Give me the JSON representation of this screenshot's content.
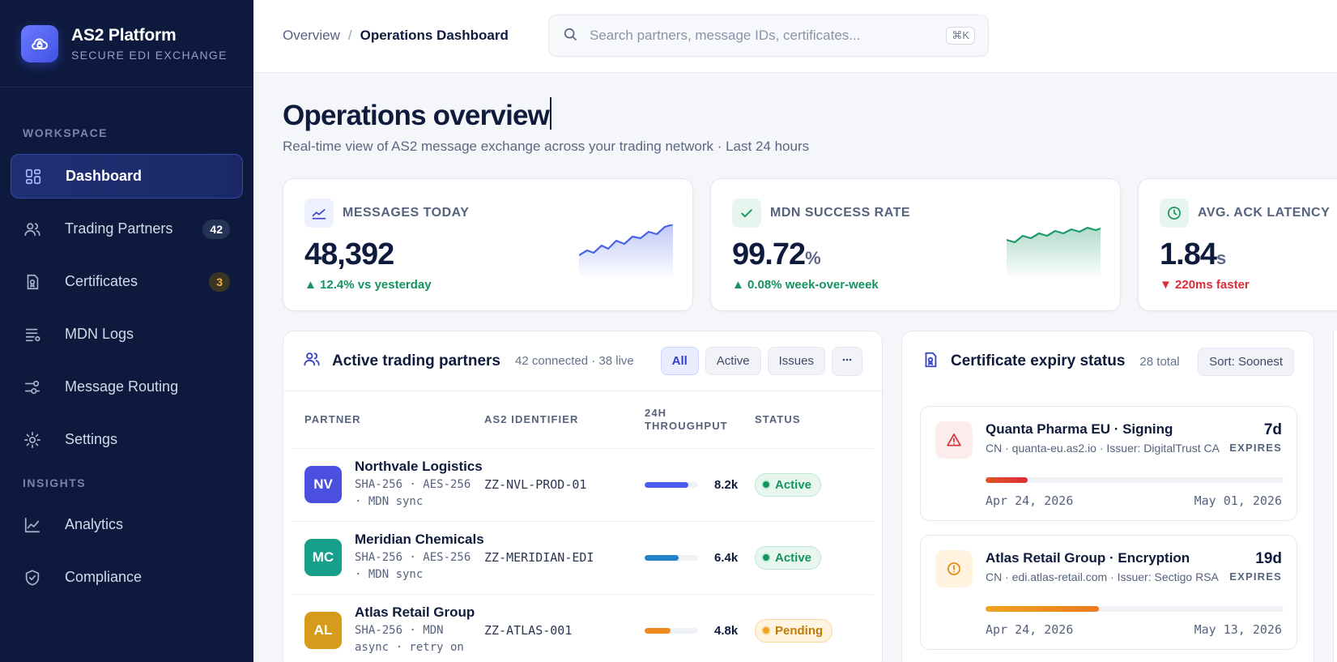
{
  "brand": {
    "name": "AS2 Platform",
    "subtitle": "SECURE EDI EXCHANGE"
  },
  "sidebar": {
    "workspace_label": "WORKSPACE",
    "insights_label": "INSIGHTS",
    "items": [
      {
        "label": "Dashboard",
        "icon": "dashboard-icon"
      },
      {
        "label": "Trading Partners",
        "icon": "users-icon",
        "badge": "42"
      },
      {
        "label": "Certificates",
        "icon": "certificate-icon",
        "badge": "3"
      },
      {
        "label": "MDN Logs",
        "icon": "list-icon"
      },
      {
        "label": "Message Routing",
        "icon": "routing-icon"
      },
      {
        "label": "Settings",
        "icon": "gear-icon"
      }
    ],
    "insights": [
      {
        "label": "Analytics",
        "icon": "chart-line-icon"
      },
      {
        "label": "Compliance",
        "icon": "shield-check-icon"
      }
    ]
  },
  "topbar": {
    "breadcrumb": [
      "Overview",
      "Operations Dashboard"
    ],
    "search_placeholder": "Search partners, message IDs, certificates...",
    "search_shortcut": "⌘K"
  },
  "page": {
    "title": "Operations overview",
    "subtitle": "Real-time view of AS2 message exchange across your trading network · Last 24 hours"
  },
  "kpis": [
    {
      "label": "MESSAGES TODAY",
      "value": "48,392",
      "unit": "",
      "delta": "12.4% vs yesterday",
      "direction": "up",
      "color": "#4a63e8"
    },
    {
      "label": "MDN SUCCESS RATE",
      "value": "99.72",
      "unit": "%",
      "delta": "0.08% week-over-week",
      "direction": "up",
      "color": "#1f9a6a"
    },
    {
      "label": "AVG. ACK LATENCY",
      "value": "1.84",
      "unit": "s",
      "delta": "220ms faster",
      "direction": "down",
      "color": "#1f9a6a"
    }
  ],
  "partners_panel": {
    "title": "Active trading partners",
    "meta": "42 connected · 38 live",
    "filters": [
      "All",
      "Active",
      "Issues"
    ],
    "columns": [
      "PARTNER",
      "AS2 IDENTIFIER",
      "24H THROUGHPUT",
      "STATUS"
    ],
    "rows": [
      {
        "initials": "NV",
        "name": "Northvale Logistics",
        "meta": "SHA-256 · AES-256 · MDN sync",
        "as2": "ZZ-NVL-PROD-01",
        "throughput": "8.2k",
        "fraction": 0.82,
        "bar_color": "#4a5cf0",
        "status": "Active",
        "avatar_color": "#4a4fe0"
      },
      {
        "initials": "MC",
        "name": "Meridian Chemicals",
        "meta": "SHA-256 · AES-256 · MDN sync",
        "as2": "ZZ-MERIDIAN-EDI",
        "throughput": "6.4k",
        "fraction": 0.64,
        "bar_color": "#2283c9",
        "status": "Active",
        "avatar_color": "#16a08a"
      },
      {
        "initials": "AL",
        "name": "Atlas Retail Group",
        "meta": "SHA-256 · MDN async · retry on",
        "as2": "ZZ-ATLAS-001",
        "throughput": "4.8k",
        "fraction": 0.48,
        "bar_color": "#f08a1e",
        "status": "Pending",
        "avatar_color": "#d69b1a"
      }
    ]
  },
  "certs_panel": {
    "title": "Certificate expiry status",
    "meta": "28 total",
    "sort": "Sort: Soonest",
    "items": [
      {
        "name": "Quanta Pharma EU · Signing",
        "cn": "CN · quanta-eu.as2.io · Issuer: DigitalTrust CA",
        "days": "7d",
        "expires_label": "EXPIRES",
        "from": "Apr 24, 2026",
        "to": "May 01, 2026",
        "fraction": 0.14,
        "severity": "critical"
      },
      {
        "name": "Atlas Retail Group · Encryption",
        "cn": "CN · edi.atlas-retail.com · Issuer: Sectigo RSA",
        "days": "19d",
        "expires_label": "EXPIRES",
        "from": "Apr 24, 2026",
        "to": "May 13, 2026",
        "fraction": 0.38,
        "severity": "warning"
      }
    ]
  }
}
